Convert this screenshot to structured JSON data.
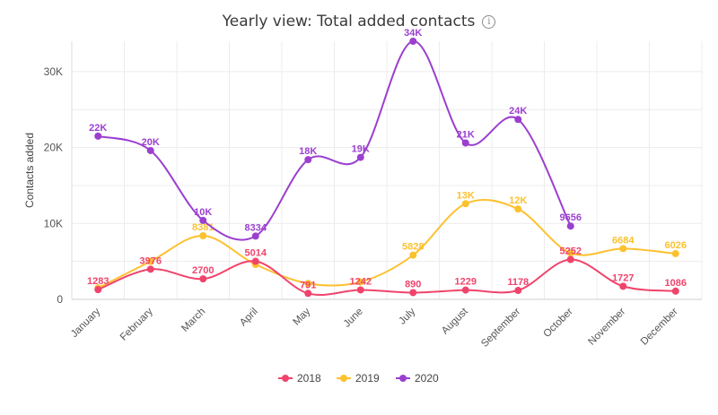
{
  "header": {
    "title": "Yearly view: Total added contacts",
    "info_icon": "info-icon"
  },
  "chart_data": {
    "type": "line",
    "title": "Yearly view: Total added contacts",
    "xlabel": "",
    "ylabel": "Contacts added",
    "ylim": [
      0,
      34000
    ],
    "y_ticks": [
      0,
      10000,
      20000,
      30000
    ],
    "y_tick_labels": [
      "0",
      "10K",
      "20K",
      "30K"
    ],
    "grid": "horizontal and vertical",
    "legend_position": "bottom",
    "categories": [
      "January",
      "February",
      "March",
      "April",
      "May",
      "June",
      "July",
      "August",
      "September",
      "October",
      "November",
      "December"
    ],
    "series": [
      {
        "name": "2018",
        "color": "#f0436b",
        "values": [
          1283,
          3976,
          2700,
          5014,
          791,
          1242,
          890,
          1229,
          1178,
          5252,
          1727,
          1086
        ],
        "labels": [
          "1283",
          "3976",
          "2700",
          "5014",
          "791",
          "1242",
          "890",
          "1229",
          "1178",
          "5252",
          "1727",
          "1086"
        ]
      },
      {
        "name": "2019",
        "color": "#fcc12f",
        "values": [
          1500,
          5000,
          8381,
          4600,
          2100,
          2300,
          5828,
          12600,
          11900,
          6100,
          6684,
          6026
        ],
        "labels": [
          "",
          "",
          "8381",
          "",
          "",
          "",
          "5828",
          "13K",
          "12K",
          "",
          "6684",
          "6026"
        ]
      },
      {
        "name": "2020",
        "color": "#9b3fcf",
        "values": [
          21500,
          19600,
          10400,
          8334,
          18400,
          18700,
          34000,
          20600,
          23700,
          9656,
          null,
          null
        ],
        "labels": [
          "22K",
          "20K",
          "10K",
          "8334",
          "18K",
          "19K",
          "34K",
          "21K",
          "24K",
          "9656",
          "",
          ""
        ]
      }
    ]
  }
}
